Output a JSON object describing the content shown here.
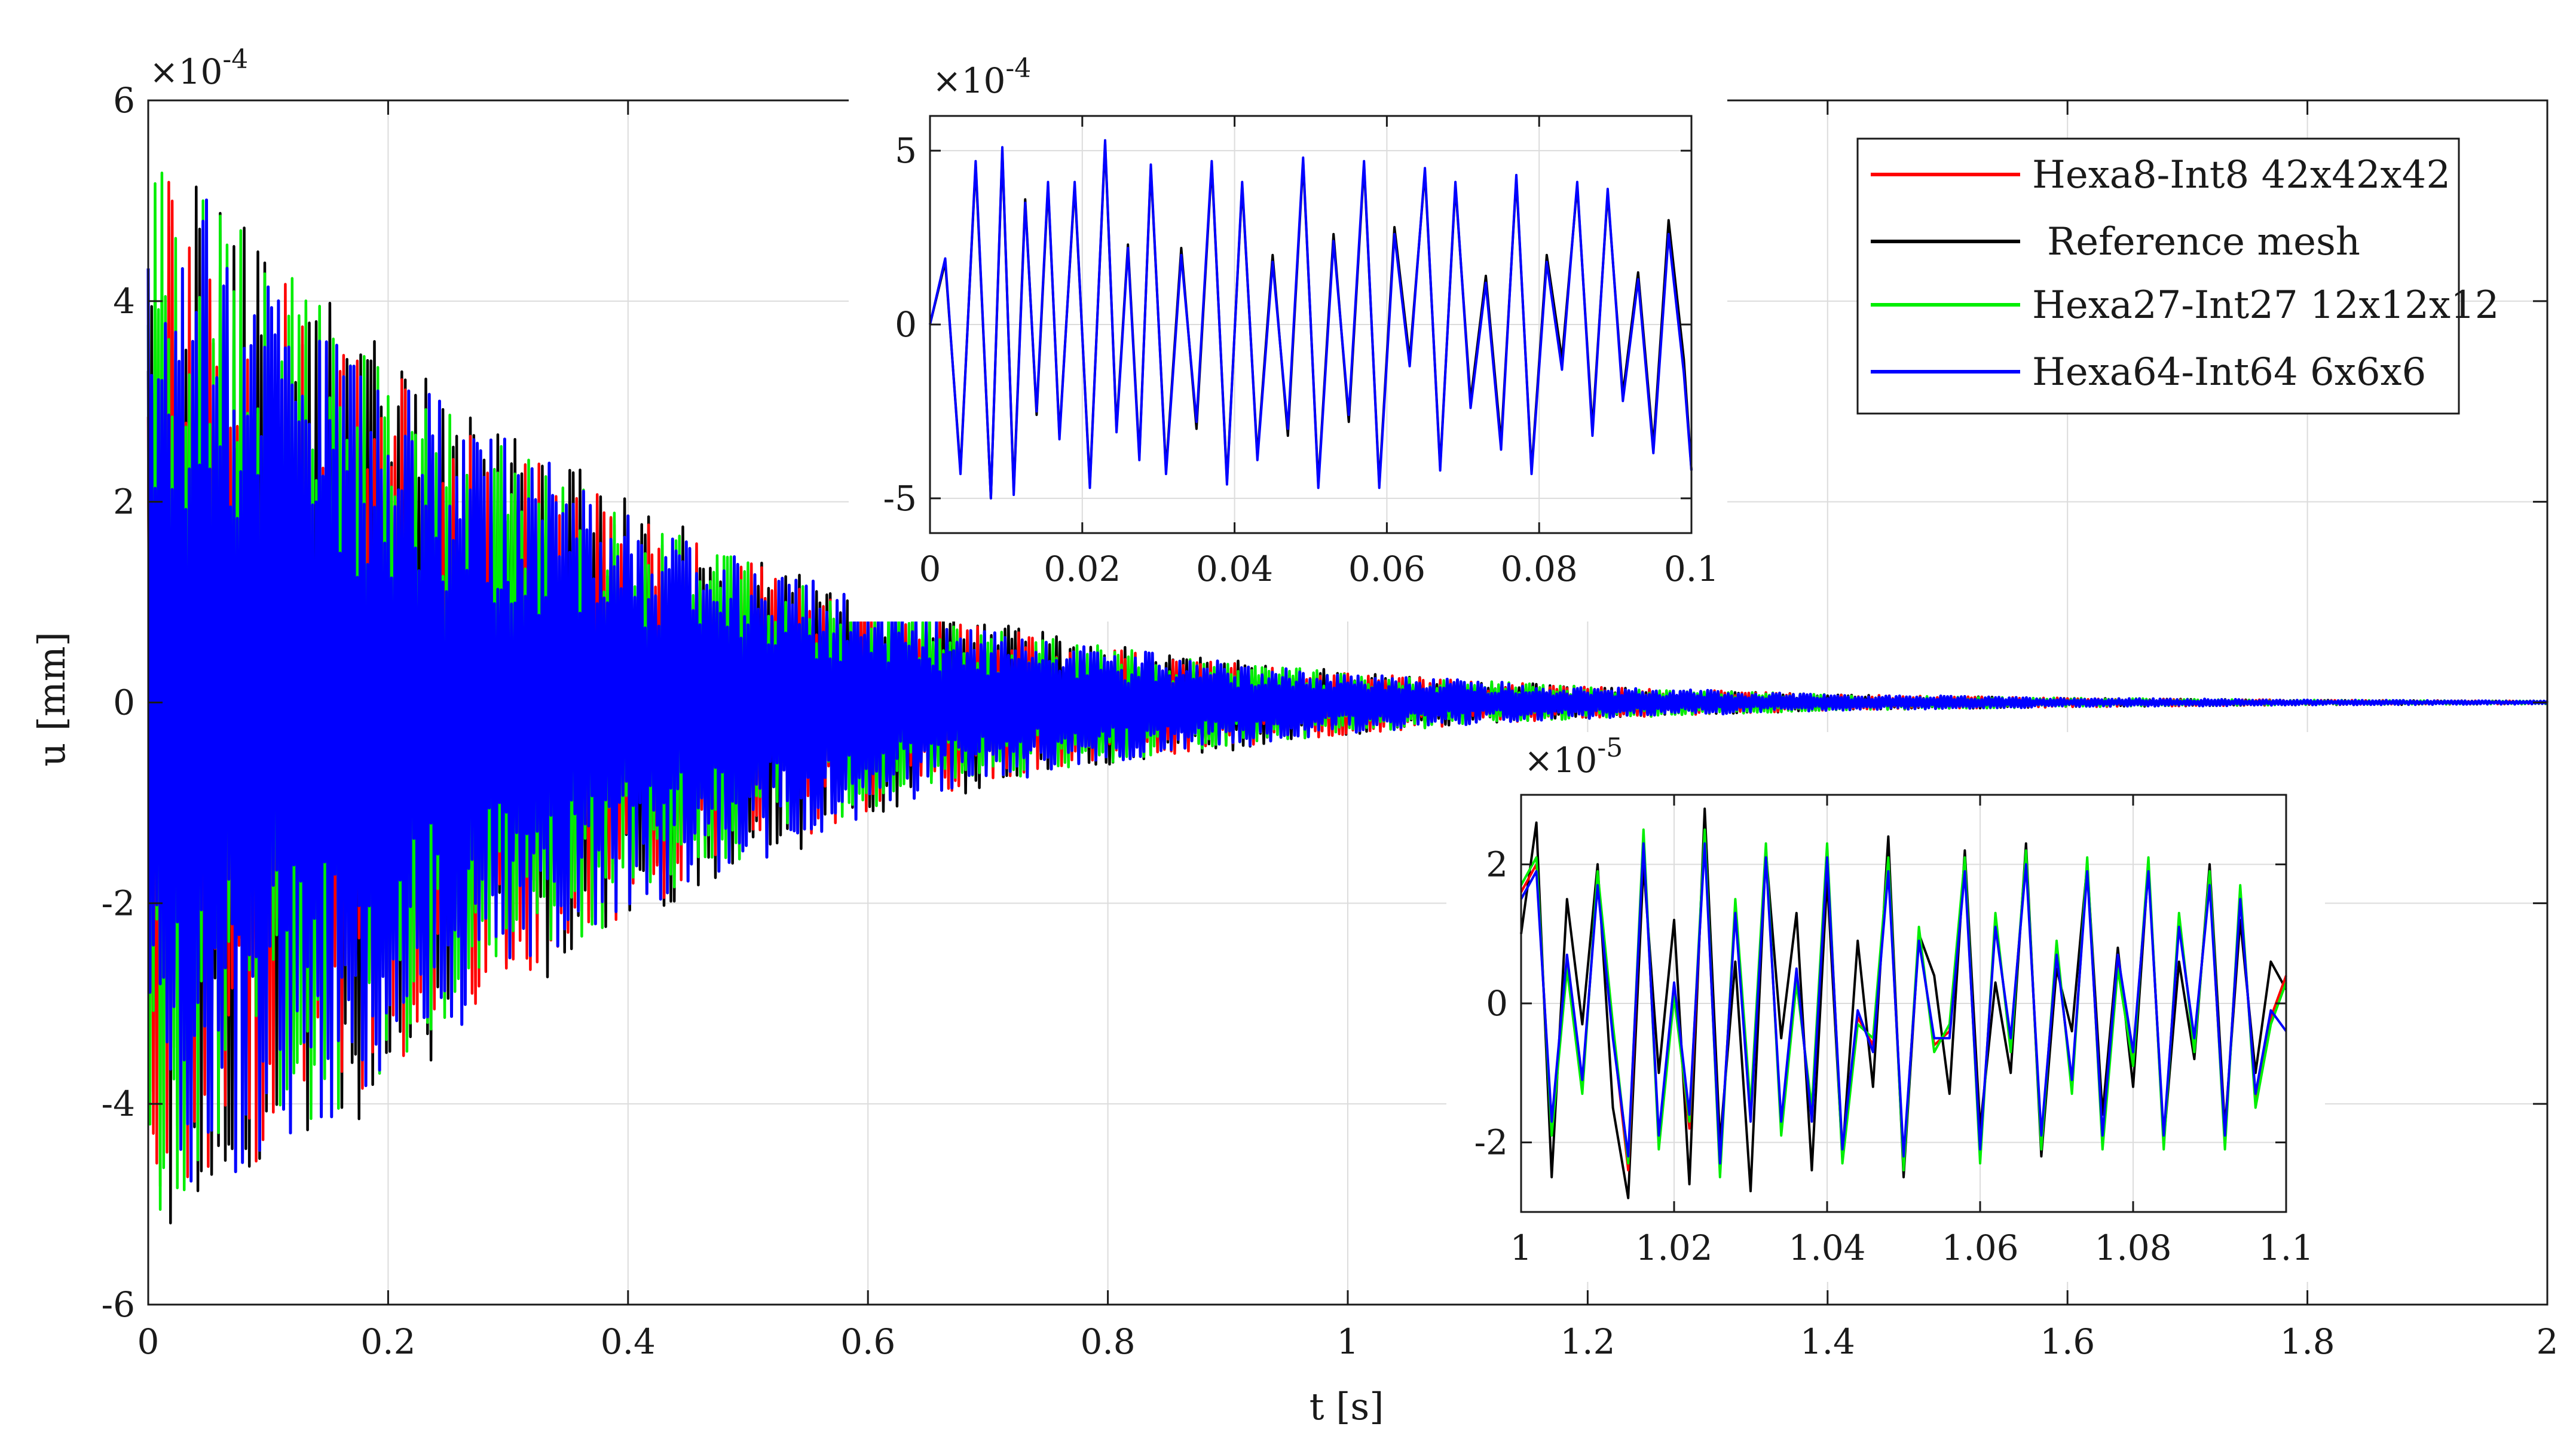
{
  "chart_data": [
    {
      "type": "line",
      "panel": "main",
      "title": "",
      "xlabel": "t [s]",
      "ylabel": "u [mm]",
      "y_multiplier": "×10^-4",
      "xlim": [
        0,
        2
      ],
      "ylim": [
        -6,
        6
      ],
      "xticks": [
        0,
        0.2,
        0.4,
        0.6,
        0.8,
        1,
        1.2,
        1.4,
        1.6,
        1.8,
        2
      ],
      "xtick_labels": [
        "0",
        "0.2",
        "0.4",
        "0.6",
        "0.8",
        "1",
        "1.2",
        "1.4",
        "1.6",
        "1.8",
        "2"
      ],
      "yticks": [
        -6,
        -4,
        -2,
        0,
        2,
        4,
        6
      ],
      "ytick_labels": [
        "-6",
        "-4",
        "-2",
        "0",
        "2",
        "4",
        "6"
      ],
      "grid": true,
      "legend_position": "top-right",
      "envelope": {
        "t": [
          0,
          0.05,
          0.1,
          0.2,
          0.3,
          0.4,
          0.5,
          0.6,
          0.7,
          0.8,
          0.9,
          1.0,
          1.1,
          1.2,
          1.4,
          1.6,
          1.8,
          2.0
        ],
        "amplitude_max": [
          5.4,
          5.1,
          4.5,
          3.3,
          2.6,
          1.9,
          1.4,
          1.0,
          0.75,
          0.55,
          0.4,
          0.3,
          0.22,
          0.16,
          0.08,
          0.045,
          0.025,
          0.015
        ],
        "amplitude_min": [
          -5.4,
          -5.0,
          -4.6,
          -3.7,
          -2.8,
          -2.1,
          -1.6,
          -1.1,
          -0.8,
          -0.6,
          -0.45,
          -0.32,
          -0.22,
          -0.16,
          -0.08,
          -0.045,
          -0.025,
          -0.015
        ]
      },
      "series": [
        {
          "name": "Hexa8-Int8 42x42x42",
          "color": "#ff0000"
        },
        {
          "name": "Reference mesh",
          "color": "#000000"
        },
        {
          "name": "Hexa27-Int27 12x12x12",
          "color": "#00ee00"
        },
        {
          "name": "Hexa64-Int64 6x6x6",
          "color": "#0000ff"
        }
      ]
    },
    {
      "type": "line",
      "panel": "inset-early",
      "xlim": [
        0,
        0.1
      ],
      "ylim": [
        -6,
        6
      ],
      "y_multiplier": "×10^-4",
      "xticks": [
        0,
        0.02,
        0.04,
        0.06,
        0.08,
        0.1
      ],
      "xtick_labels": [
        "0",
        "0.02",
        "0.04",
        "0.06",
        "0.08",
        "0.1"
      ],
      "yticks": [
        -5,
        0,
        5
      ],
      "ytick_labels": [
        "-5",
        "0",
        "5"
      ],
      "grid": true,
      "series": [
        {
          "name": "Reference mesh",
          "color": "#000000",
          "x": [
            0,
            0.002,
            0.004,
            0.006,
            0.008,
            0.0095,
            0.011,
            0.0125,
            0.014,
            0.0155,
            0.017,
            0.019,
            0.021,
            0.023,
            0.0245,
            0.026,
            0.0275,
            0.029,
            0.031,
            0.033,
            0.035,
            0.037,
            0.039,
            0.041,
            0.043,
            0.045,
            0.047,
            0.049,
            0.051,
            0.053,
            0.055,
            0.057,
            0.059,
            0.061,
            0.063,
            0.065,
            0.067,
            0.069,
            0.071,
            0.073,
            0.075,
            0.077,
            0.079,
            0.081,
            0.083,
            0.085,
            0.087,
            0.089,
            0.091,
            0.093,
            0.095,
            0.097,
            0.099,
            0.1
          ],
          "y": [
            0,
            1.8,
            -4.2,
            4.6,
            -5.0,
            5.0,
            -4.8,
            3.6,
            -2.6,
            4.0,
            -3.2,
            4.0,
            -4.6,
            5.2,
            -3.0,
            2.3,
            -3.8,
            4.5,
            -4.2,
            2.2,
            -3.0,
            4.6,
            -4.5,
            4.0,
            -3.8,
            2.0,
            -3.2,
            4.7,
            -4.6,
            2.6,
            -2.8,
            4.6,
            -4.6,
            2.8,
            -1.0,
            4.4,
            -4.1,
            4.0,
            -2.2,
            1.4,
            -3.4,
            4.2,
            -4.2,
            2.0,
            -1.0,
            4.0,
            -3.0,
            3.8,
            -2.0,
            1.5,
            -3.5,
            3.0,
            -1.0,
            -4.2
          ]
        },
        {
          "name": "Hexa64-Int64 6x6x6",
          "color": "#0000ff",
          "x": [
            0,
            0.002,
            0.004,
            0.006,
            0.008,
            0.0095,
            0.011,
            0.0125,
            0.014,
            0.0155,
            0.017,
            0.019,
            0.021,
            0.023,
            0.0245,
            0.026,
            0.0275,
            0.029,
            0.031,
            0.033,
            0.035,
            0.037,
            0.039,
            0.041,
            0.043,
            0.045,
            0.047,
            0.049,
            0.051,
            0.053,
            0.055,
            0.057,
            0.059,
            0.061,
            0.063,
            0.065,
            0.067,
            0.069,
            0.071,
            0.073,
            0.075,
            0.077,
            0.079,
            0.081,
            0.083,
            0.085,
            0.087,
            0.089,
            0.091,
            0.093,
            0.095,
            0.097,
            0.099,
            0.1
          ],
          "y": [
            0,
            1.9,
            -4.3,
            4.7,
            -5.0,
            5.1,
            -4.9,
            3.5,
            -2.5,
            4.1,
            -3.3,
            4.1,
            -4.7,
            5.3,
            -3.1,
            2.2,
            -3.9,
            4.6,
            -4.3,
            2.0,
            -2.8,
            4.7,
            -4.6,
            4.1,
            -3.9,
            1.8,
            -3.0,
            4.8,
            -4.7,
            2.4,
            -2.6,
            4.7,
            -4.7,
            2.6,
            -1.2,
            4.5,
            -4.2,
            4.1,
            -2.4,
            1.2,
            -3.6,
            4.3,
            -4.3,
            1.8,
            -1.3,
            4.1,
            -3.2,
            3.9,
            -2.2,
            1.3,
            -3.7,
            2.6,
            -1.4,
            -4.2
          ]
        }
      ]
    },
    {
      "type": "line",
      "panel": "inset-late",
      "xlim": [
        1,
        1.1
      ],
      "ylim": [
        -3,
        3
      ],
      "y_multiplier": "×10^-5",
      "xticks": [
        1,
        1.02,
        1.04,
        1.06,
        1.08,
        1.1
      ],
      "xtick_labels": [
        "1",
        "1.02",
        "1.04",
        "1.06",
        "1.08",
        "1.1"
      ],
      "yticks": [
        -2,
        0,
        2
      ],
      "ytick_labels": [
        "-2",
        "0",
        "2"
      ],
      "grid": true,
      "series": [
        {
          "name": "Reference mesh",
          "color": "#000000",
          "x": [
            1,
            1.002,
            1.004,
            1.006,
            1.008,
            1.01,
            1.012,
            1.014,
            1.016,
            1.018,
            1.02,
            1.022,
            1.024,
            1.026,
            1.028,
            1.03,
            1.032,
            1.034,
            1.036,
            1.038,
            1.04,
            1.042,
            1.044,
            1.046,
            1.048,
            1.05,
            1.052,
            1.054,
            1.056,
            1.058,
            1.06,
            1.062,
            1.064,
            1.066,
            1.068,
            1.07,
            1.072,
            1.074,
            1.076,
            1.078,
            1.08,
            1.082,
            1.084,
            1.086,
            1.088,
            1.09,
            1.092,
            1.094,
            1.096,
            1.098,
            1.1
          ],
          "y": [
            1.0,
            2.6,
            -2.5,
            1.5,
            -0.3,
            2.0,
            -1.5,
            -2.8,
            2.0,
            -1.0,
            1.2,
            -2.6,
            2.8,
            -2.0,
            0.6,
            -2.7,
            2.2,
            -0.5,
            1.3,
            -2.4,
            1.8,
            -2.2,
            0.9,
            -1.2,
            2.4,
            -2.5,
            1.0,
            0.4,
            -1.3,
            2.2,
            -1.8,
            0.3,
            -1.0,
            2.3,
            -2.2,
            0.5,
            -0.4,
            2.0,
            -1.6,
            0.8,
            -1.2,
            2.0,
            -2.0,
            0.6,
            -0.8,
            2.0,
            -1.8,
            1.2,
            -1.0,
            0.6,
            0.2
          ]
        },
        {
          "name": "Hexa8-Int8 42x42x42",
          "color": "#ff0000",
          "x": [
            1,
            1.002,
            1.004,
            1.006,
            1.008,
            1.01,
            1.012,
            1.014,
            1.016,
            1.018,
            1.02,
            1.022,
            1.024,
            1.026,
            1.028,
            1.03,
            1.032,
            1.034,
            1.036,
            1.038,
            1.04,
            1.042,
            1.044,
            1.046,
            1.048,
            1.05,
            1.052,
            1.054,
            1.056,
            1.058,
            1.06,
            1.062,
            1.064,
            1.066,
            1.068,
            1.07,
            1.072,
            1.074,
            1.076,
            1.078,
            1.08,
            1.082,
            1.084,
            1.086,
            1.088,
            1.09,
            1.092,
            1.094,
            1.096,
            1.098,
            1.1
          ],
          "y": [
            1.6,
            2.0,
            -1.8,
            0.6,
            -1.2,
            1.8,
            -0.4,
            -2.4,
            2.4,
            -2.0,
            0.2,
            -1.8,
            2.4,
            -2.4,
            1.4,
            -1.6,
            2.2,
            -1.8,
            0.4,
            -1.6,
            2.2,
            -2.2,
            -0.2,
            -0.6,
            2.0,
            -2.3,
            1.0,
            -0.6,
            -0.4,
            2.0,
            -2.2,
            1.2,
            -0.6,
            2.1,
            -2.0,
            0.8,
            -1.2,
            2.0,
            -2.0,
            0.6,
            -0.8,
            2.0,
            -2.0,
            1.2,
            -0.6,
            1.8,
            -2.0,
            1.6,
            -1.4,
            -0.2,
            0.4
          ]
        },
        {
          "name": "Hexa27-Int27 12x12x12",
          "color": "#00ee00",
          "x": [
            1,
            1.002,
            1.004,
            1.006,
            1.008,
            1.01,
            1.012,
            1.014,
            1.016,
            1.018,
            1.02,
            1.022,
            1.024,
            1.026,
            1.028,
            1.03,
            1.032,
            1.034,
            1.036,
            1.038,
            1.04,
            1.042,
            1.044,
            1.046,
            1.048,
            1.05,
            1.052,
            1.054,
            1.056,
            1.058,
            1.06,
            1.062,
            1.064,
            1.066,
            1.068,
            1.07,
            1.072,
            1.074,
            1.076,
            1.078,
            1.08,
            1.082,
            1.084,
            1.086,
            1.088,
            1.09,
            1.092,
            1.094,
            1.096,
            1.098,
            1.1
          ],
          "y": [
            1.7,
            2.1,
            -1.9,
            0.5,
            -1.3,
            1.9,
            -0.3,
            -2.3,
            2.5,
            -2.1,
            0.1,
            -1.7,
            2.5,
            -2.5,
            1.5,
            -1.5,
            2.3,
            -1.9,
            0.3,
            -1.5,
            2.3,
            -2.3,
            -0.3,
            -0.5,
            2.1,
            -2.4,
            1.1,
            -0.7,
            -0.3,
            2.1,
            -2.3,
            1.3,
            -0.7,
            2.2,
            -2.1,
            0.9,
            -1.3,
            2.1,
            -2.1,
            0.5,
            -0.9,
            2.1,
            -2.1,
            1.3,
            -0.7,
            1.9,
            -2.1,
            1.7,
            -1.5,
            -0.3,
            0.3
          ]
        },
        {
          "name": "Hexa64-Int64 6x6x6",
          "color": "#0000ff",
          "x": [
            1,
            1.002,
            1.004,
            1.006,
            1.008,
            1.01,
            1.012,
            1.014,
            1.016,
            1.018,
            1.02,
            1.022,
            1.024,
            1.026,
            1.028,
            1.03,
            1.032,
            1.034,
            1.036,
            1.038,
            1.04,
            1.042,
            1.044,
            1.046,
            1.048,
            1.05,
            1.052,
            1.054,
            1.056,
            1.058,
            1.06,
            1.062,
            1.064,
            1.066,
            1.068,
            1.07,
            1.072,
            1.074,
            1.076,
            1.078,
            1.08,
            1.082,
            1.084,
            1.086,
            1.088,
            1.09,
            1.092,
            1.094,
            1.096,
            1.098,
            1.1
          ],
          "y": [
            1.5,
            1.9,
            -1.7,
            0.7,
            -1.1,
            1.7,
            -0.5,
            -2.2,
            2.3,
            -1.9,
            0.3,
            -1.6,
            2.3,
            -2.3,
            1.3,
            -1.7,
            2.1,
            -1.7,
            0.5,
            -1.7,
            2.1,
            -2.1,
            -0.1,
            -0.7,
            1.9,
            -2.2,
            0.9,
            -0.5,
            -0.5,
            1.9,
            -2.1,
            1.1,
            -0.5,
            2.0,
            -1.9,
            0.7,
            -1.1,
            1.9,
            -1.9,
            0.7,
            -0.7,
            1.9,
            -1.9,
            1.1,
            -0.5,
            1.7,
            -1.9,
            1.5,
            -1.3,
            -0.1,
            -0.4
          ]
        }
      ]
    }
  ]
}
